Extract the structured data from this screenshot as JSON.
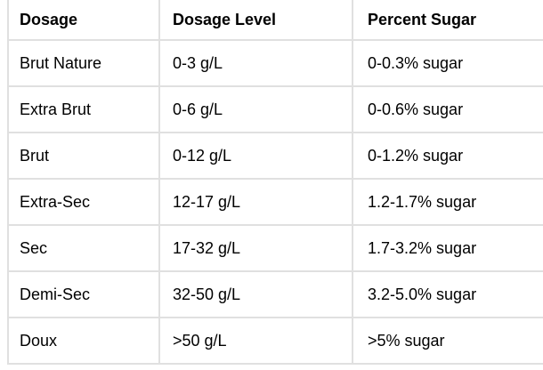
{
  "chart_data": {
    "type": "table",
    "title": "",
    "columns": [
      "Dosage",
      "Dosage Level",
      "Percent Sugar"
    ],
    "rows": [
      [
        "Brut Nature",
        "0-3 g/L",
        "0-0.3% sugar"
      ],
      [
        "Extra Brut",
        "0-6 g/L",
        "0-0.6% sugar"
      ],
      [
        "Brut",
        "0-12 g/L",
        "0-1.2% sugar"
      ],
      [
        "Extra-Sec",
        "12-17 g/L",
        "1.2-1.7% sugar"
      ],
      [
        "Sec",
        "17-32 g/L",
        "1.7-3.2% sugar"
      ],
      [
        "Demi-Sec",
        "32-50 g/L",
        "3.2-5.0% sugar"
      ],
      [
        "Doux",
        ">50 g/L",
        ">5% sugar"
      ]
    ],
    "layout_hints": {
      "header_bold": true,
      "grid": "all-borders",
      "cropped_edges": [
        "top",
        "right"
      ]
    }
  },
  "colors": {
    "border": "#e0e0e0",
    "text": "#000000",
    "background": "#ffffff"
  }
}
